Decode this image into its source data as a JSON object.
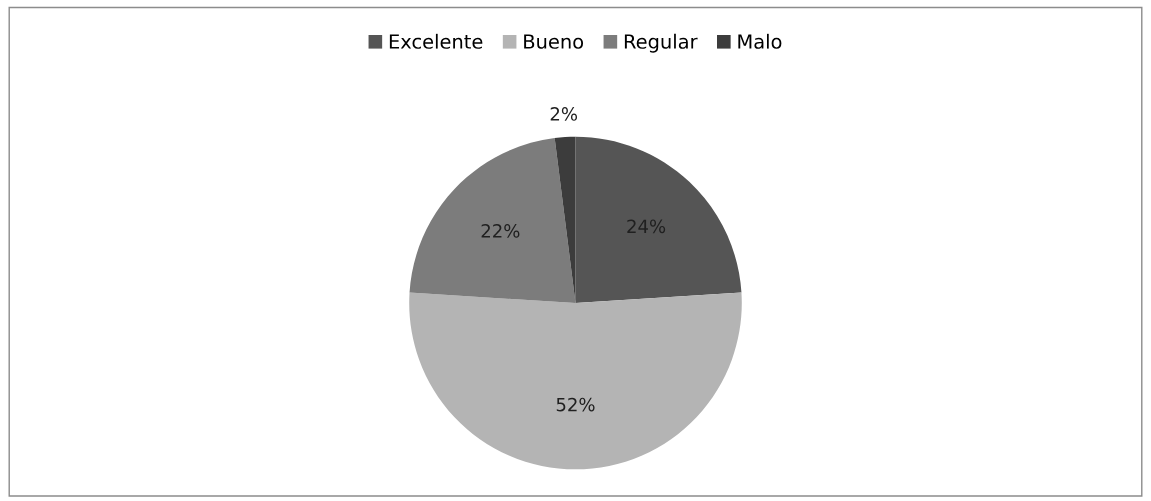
{
  "chart_data": {
    "type": "pie",
    "categories": [
      "Excelente",
      "Bueno",
      "Regular",
      "Malo"
    ],
    "values": [
      24,
      52,
      22,
      2
    ],
    "colors": [
      "#555555",
      "#b4b4b4",
      "#7c7c7c",
      "#3c3c3c"
    ],
    "value_labels": [
      "24%",
      "52%",
      "22%",
      "2%"
    ],
    "legend": "top"
  }
}
